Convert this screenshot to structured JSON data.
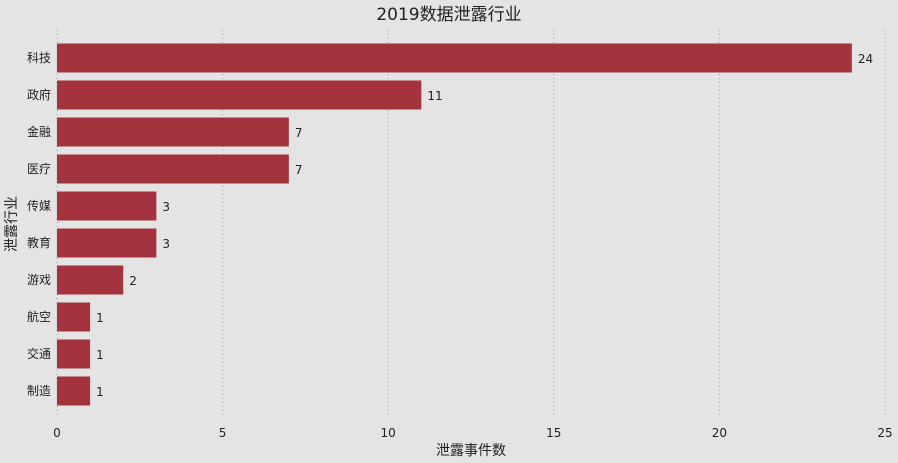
{
  "chart_data": {
    "type": "bar",
    "orientation": "horizontal",
    "title": "2019数据泄露行业",
    "xlabel": "泄露事件数",
    "ylabel": "泄露行业",
    "categories": [
      "科技",
      "政府",
      "金融",
      "医疗",
      "传媒",
      "教育",
      "游戏",
      "航空",
      "交通",
      "制造"
    ],
    "values": [
      24,
      11,
      7,
      7,
      3,
      3,
      2,
      1,
      1,
      1
    ],
    "xlim": [
      0,
      25
    ],
    "xticks": [
      0,
      5,
      10,
      15,
      20,
      25
    ],
    "grid": "vertical dotted",
    "bar_color": "#a3333d",
    "background_color": "#e5e4e4",
    "data_labels": true
  }
}
